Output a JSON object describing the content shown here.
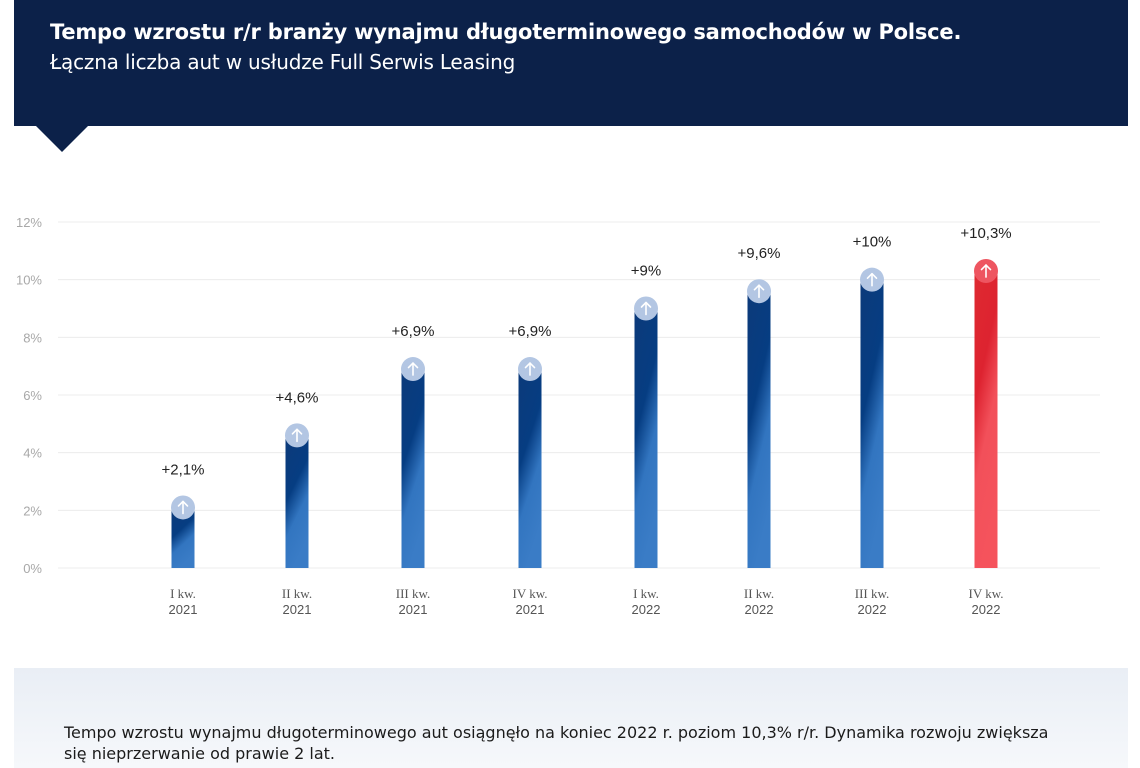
{
  "header": {
    "title": "Tempo wzrostu r/r branży wynajmu długoterminowego samochodów w Polsce.",
    "subtitle": "Łączna liczba aut w usłudze Full Serwis Leasing",
    "background_color": "#0c2149"
  },
  "chart_data": {
    "type": "bar",
    "title": "Tempo wzrostu r/r branży wynajmu długoterminowego samochodów w Polsce.",
    "subtitle": "Łączna liczba aut w usłudze Full Serwis Leasing",
    "xlabel": "",
    "ylabel": "",
    "ylim": [
      0,
      12
    ],
    "yticks": [
      0,
      2,
      4,
      6,
      8,
      10,
      12
    ],
    "ytick_labels": [
      "0%",
      "2%",
      "4%",
      "6%",
      "8%",
      "10%",
      "12%"
    ],
    "grid": true,
    "legend": "none",
    "categories": [
      [
        "I kw.",
        "2021"
      ],
      [
        "II kw.",
        "2021"
      ],
      [
        "III kw.",
        "2021"
      ],
      [
        "IV kw.",
        "2021"
      ],
      [
        "I kw.",
        "2022"
      ],
      [
        "II kw.",
        "2022"
      ],
      [
        "III kw.",
        "2022"
      ],
      [
        "IV kw.",
        "2022"
      ]
    ],
    "values": [
      2.1,
      4.6,
      6.9,
      6.9,
      9.0,
      9.6,
      10.0,
      10.3
    ],
    "data_labels": [
      "+2,1%",
      "+4,6%",
      "+6,9%",
      "+6,9%",
      "+9%",
      "+9,6%",
      "+10%",
      "+10,3%"
    ],
    "bar_colors": [
      "#1f5ba8",
      "#1f5ba8",
      "#1f5ba8",
      "#1f5ba8",
      "#1f5ba8",
      "#1f5ba8",
      "#1f5ba8",
      "#e3262f"
    ],
    "marker_icon": "arrow-up-icon"
  },
  "footer": {
    "text": "Tempo wzrostu wynajmu długoterminowego aut osiągnęło na koniec 2022 r. poziom 10,3% r/r. Dynamika rozwoju zwiększa się nieprzerwanie od prawie 2 lat."
  }
}
